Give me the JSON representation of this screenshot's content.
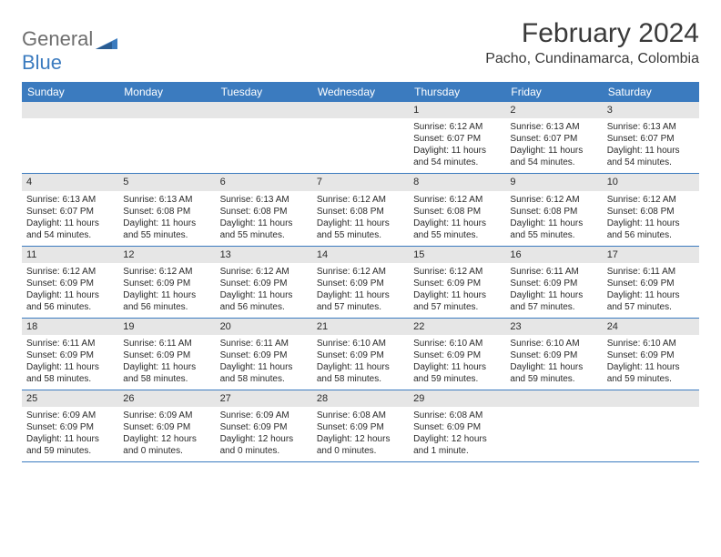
{
  "logo": {
    "text1": "General",
    "text2": "Blue"
  },
  "title": "February 2024",
  "location": "Pacho, Cundinamarca, Colombia",
  "colors": {
    "header_bg": "#3b7bbf",
    "header_text": "#ffffff",
    "daynum_bg": "#e6e6e6",
    "row_border": "#3b7bbf",
    "body_text": "#2a2a2a",
    "logo_gray": "#6e6e6e",
    "logo_blue": "#3b7bbf",
    "page_bg": "#ffffff"
  },
  "weekdays": [
    "Sunday",
    "Monday",
    "Tuesday",
    "Wednesday",
    "Thursday",
    "Friday",
    "Saturday"
  ],
  "weeks": [
    [
      null,
      null,
      null,
      null,
      {
        "n": "1",
        "sr": "Sunrise: 6:12 AM",
        "ss": "Sunset: 6:07 PM",
        "dl": "Daylight: 11 hours and 54 minutes."
      },
      {
        "n": "2",
        "sr": "Sunrise: 6:13 AM",
        "ss": "Sunset: 6:07 PM",
        "dl": "Daylight: 11 hours and 54 minutes."
      },
      {
        "n": "3",
        "sr": "Sunrise: 6:13 AM",
        "ss": "Sunset: 6:07 PM",
        "dl": "Daylight: 11 hours and 54 minutes."
      }
    ],
    [
      {
        "n": "4",
        "sr": "Sunrise: 6:13 AM",
        "ss": "Sunset: 6:07 PM",
        "dl": "Daylight: 11 hours and 54 minutes."
      },
      {
        "n": "5",
        "sr": "Sunrise: 6:13 AM",
        "ss": "Sunset: 6:08 PM",
        "dl": "Daylight: 11 hours and 55 minutes."
      },
      {
        "n": "6",
        "sr": "Sunrise: 6:13 AM",
        "ss": "Sunset: 6:08 PM",
        "dl": "Daylight: 11 hours and 55 minutes."
      },
      {
        "n": "7",
        "sr": "Sunrise: 6:12 AM",
        "ss": "Sunset: 6:08 PM",
        "dl": "Daylight: 11 hours and 55 minutes."
      },
      {
        "n": "8",
        "sr": "Sunrise: 6:12 AM",
        "ss": "Sunset: 6:08 PM",
        "dl": "Daylight: 11 hours and 55 minutes."
      },
      {
        "n": "9",
        "sr": "Sunrise: 6:12 AM",
        "ss": "Sunset: 6:08 PM",
        "dl": "Daylight: 11 hours and 55 minutes."
      },
      {
        "n": "10",
        "sr": "Sunrise: 6:12 AM",
        "ss": "Sunset: 6:08 PM",
        "dl": "Daylight: 11 hours and 56 minutes."
      }
    ],
    [
      {
        "n": "11",
        "sr": "Sunrise: 6:12 AM",
        "ss": "Sunset: 6:09 PM",
        "dl": "Daylight: 11 hours and 56 minutes."
      },
      {
        "n": "12",
        "sr": "Sunrise: 6:12 AM",
        "ss": "Sunset: 6:09 PM",
        "dl": "Daylight: 11 hours and 56 minutes."
      },
      {
        "n": "13",
        "sr": "Sunrise: 6:12 AM",
        "ss": "Sunset: 6:09 PM",
        "dl": "Daylight: 11 hours and 56 minutes."
      },
      {
        "n": "14",
        "sr": "Sunrise: 6:12 AM",
        "ss": "Sunset: 6:09 PM",
        "dl": "Daylight: 11 hours and 57 minutes."
      },
      {
        "n": "15",
        "sr": "Sunrise: 6:12 AM",
        "ss": "Sunset: 6:09 PM",
        "dl": "Daylight: 11 hours and 57 minutes."
      },
      {
        "n": "16",
        "sr": "Sunrise: 6:11 AM",
        "ss": "Sunset: 6:09 PM",
        "dl": "Daylight: 11 hours and 57 minutes."
      },
      {
        "n": "17",
        "sr": "Sunrise: 6:11 AM",
        "ss": "Sunset: 6:09 PM",
        "dl": "Daylight: 11 hours and 57 minutes."
      }
    ],
    [
      {
        "n": "18",
        "sr": "Sunrise: 6:11 AM",
        "ss": "Sunset: 6:09 PM",
        "dl": "Daylight: 11 hours and 58 minutes."
      },
      {
        "n": "19",
        "sr": "Sunrise: 6:11 AM",
        "ss": "Sunset: 6:09 PM",
        "dl": "Daylight: 11 hours and 58 minutes."
      },
      {
        "n": "20",
        "sr": "Sunrise: 6:11 AM",
        "ss": "Sunset: 6:09 PM",
        "dl": "Daylight: 11 hours and 58 minutes."
      },
      {
        "n": "21",
        "sr": "Sunrise: 6:10 AM",
        "ss": "Sunset: 6:09 PM",
        "dl": "Daylight: 11 hours and 58 minutes."
      },
      {
        "n": "22",
        "sr": "Sunrise: 6:10 AM",
        "ss": "Sunset: 6:09 PM",
        "dl": "Daylight: 11 hours and 59 minutes."
      },
      {
        "n": "23",
        "sr": "Sunrise: 6:10 AM",
        "ss": "Sunset: 6:09 PM",
        "dl": "Daylight: 11 hours and 59 minutes."
      },
      {
        "n": "24",
        "sr": "Sunrise: 6:10 AM",
        "ss": "Sunset: 6:09 PM",
        "dl": "Daylight: 11 hours and 59 minutes."
      }
    ],
    [
      {
        "n": "25",
        "sr": "Sunrise: 6:09 AM",
        "ss": "Sunset: 6:09 PM",
        "dl": "Daylight: 11 hours and 59 minutes."
      },
      {
        "n": "26",
        "sr": "Sunrise: 6:09 AM",
        "ss": "Sunset: 6:09 PM",
        "dl": "Daylight: 12 hours and 0 minutes."
      },
      {
        "n": "27",
        "sr": "Sunrise: 6:09 AM",
        "ss": "Sunset: 6:09 PM",
        "dl": "Daylight: 12 hours and 0 minutes."
      },
      {
        "n": "28",
        "sr": "Sunrise: 6:08 AM",
        "ss": "Sunset: 6:09 PM",
        "dl": "Daylight: 12 hours and 0 minutes."
      },
      {
        "n": "29",
        "sr": "Sunrise: 6:08 AM",
        "ss": "Sunset: 6:09 PM",
        "dl": "Daylight: 12 hours and 1 minute."
      },
      null,
      null
    ]
  ]
}
